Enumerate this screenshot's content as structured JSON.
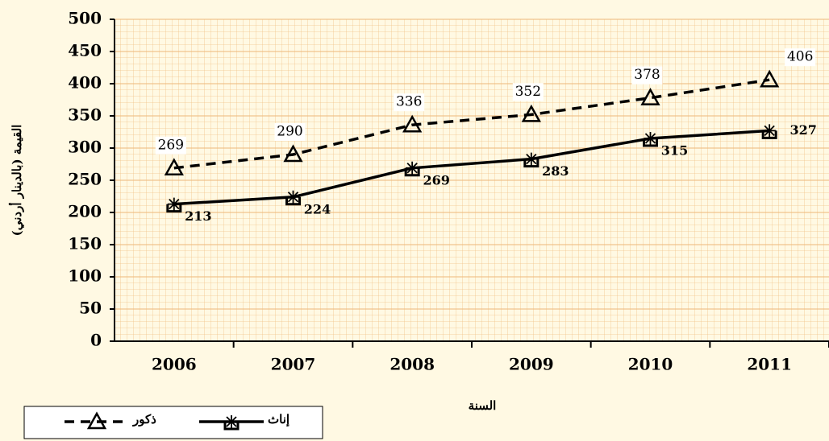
{
  "chart_data": {
    "type": "line",
    "x_label": "السنة",
    "y_label": "القيمة (بالدينار أردني)",
    "categories": [
      "2006",
      "2007",
      "2008",
      "2009",
      "2010",
      "2011"
    ],
    "series": [
      {
        "name": "ذكور",
        "color": "#000000",
        "line_style": "dashed",
        "marker": "triangle",
        "values": [
          269,
          290,
          336,
          352,
          378,
          406
        ]
      },
      {
        "name": "إناث",
        "color": "#000000",
        "line_style": "solid",
        "marker": "star-square",
        "values": [
          213,
          224,
          269,
          283,
          315,
          327
        ]
      }
    ],
    "ylim": [
      0,
      500
    ],
    "yticks": [
      0,
      50,
      100,
      150,
      200,
      250,
      300,
      350,
      400,
      450,
      500
    ],
    "grid": true
  }
}
